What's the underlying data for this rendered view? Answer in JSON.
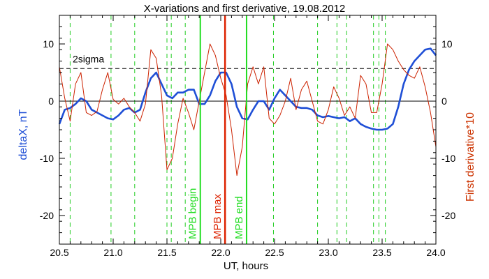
{
  "chart_data": {
    "type": "line",
    "title": "X-variations and first derivative, 19.08.2012",
    "xlabel": "UT, hours",
    "ylabel_left": "deltaX, nT",
    "ylabel_right": "First derivative*10",
    "xlim": [
      20.5,
      24.0
    ],
    "ylim": [
      -25,
      15
    ],
    "x_ticks": [
      20.5,
      21.0,
      21.5,
      22.0,
      22.5,
      23.0,
      23.5,
      24.0
    ],
    "x_tick_labels": [
      "20.5",
      "21.0",
      "21.5",
      "22.0",
      "22.5",
      "23.0",
      "23.5",
      "24.0"
    ],
    "y_ticks": [
      10,
      0,
      -10,
      -20
    ],
    "y_tick_labels": [
      "10",
      "0",
      "-10",
      "-20"
    ],
    "sigma_level": 5.7,
    "sigma_label": "2sigma",
    "green_dashed_x": [
      20.6,
      20.98,
      21.2,
      21.5,
      21.54,
      21.67,
      22.49,
      22.9,
      23.08,
      23.17,
      23.42,
      23.47,
      23.53
    ],
    "markers": [
      {
        "label": "MPB begin",
        "x": 21.81,
        "color": "#22dd22"
      },
      {
        "label": "MPB max",
        "x": 22.04,
        "color": "#dd2200"
      },
      {
        "label": "MPB end",
        "x": 22.24,
        "color": "#22dd22"
      }
    ],
    "series": [
      {
        "color": "#1f4fd6",
        "x": [
          20.5,
          20.55,
          20.6,
          20.65,
          20.7,
          20.75,
          20.8,
          20.85,
          20.9,
          20.95,
          21.0,
          21.05,
          21.1,
          21.15,
          21.2,
          21.25,
          21.3,
          21.35,
          21.4,
          21.45,
          21.5,
          21.55,
          21.6,
          21.65,
          21.7,
          21.75,
          21.8,
          21.85,
          21.9,
          21.95,
          22.0,
          22.05,
          22.1,
          22.15,
          22.2,
          22.25,
          22.3,
          22.35,
          22.4,
          22.45,
          22.5,
          22.55,
          22.6,
          22.65,
          22.7,
          22.75,
          22.8,
          22.85,
          22.9,
          22.95,
          23.0,
          23.05,
          23.1,
          23.15,
          23.2,
          23.25,
          23.3,
          23.35,
          23.4,
          23.45,
          23.5,
          23.55,
          23.6,
          23.65,
          23.7,
          23.75,
          23.8,
          23.85,
          23.9,
          23.95,
          24.0
        ],
        "values": [
          -4,
          -1.5,
          -1.2,
          -0.5,
          0.5,
          0,
          -1.5,
          -2,
          -2.5,
          -3,
          -3.2,
          -2.5,
          -1.5,
          -1.2,
          -2,
          -1.5,
          1.5,
          4,
          5,
          3,
          1,
          0.5,
          1.5,
          1.5,
          2,
          2,
          -0.5,
          -0.5,
          1,
          3.5,
          5,
          5,
          3,
          -1,
          -3,
          -3.2,
          -1.5,
          0,
          0,
          -1.5,
          0.5,
          2,
          1,
          0,
          -1,
          -1.2,
          -1.2,
          -1.5,
          -2.5,
          -2.8,
          -2.6,
          -2.8,
          -3,
          -2.8,
          -3.5,
          -3,
          -4,
          -4.5,
          -4.8,
          -5,
          -5,
          -4.8,
          -4,
          -1,
          3,
          5.5,
          7,
          8,
          9,
          9.2,
          8
        ]
      },
      {
        "color": "#cc2200",
        "x": [
          20.5,
          20.55,
          20.6,
          20.65,
          20.7,
          20.75,
          20.8,
          20.85,
          20.9,
          20.95,
          21.0,
          21.05,
          21.1,
          21.15,
          21.2,
          21.25,
          21.3,
          21.35,
          21.4,
          21.45,
          21.5,
          21.55,
          21.6,
          21.65,
          21.7,
          21.75,
          21.8,
          21.85,
          21.9,
          21.95,
          22.0,
          22.05,
          22.1,
          22.15,
          22.2,
          22.25,
          22.3,
          22.35,
          22.4,
          22.45,
          22.5,
          22.55,
          22.6,
          22.65,
          22.7,
          22.75,
          22.8,
          22.85,
          22.9,
          22.95,
          23.0,
          23.05,
          23.1,
          23.15,
          23.2,
          23.25,
          23.3,
          23.35,
          23.4,
          23.45,
          23.5,
          23.55,
          23.6,
          23.65,
          23.7,
          23.75,
          23.8,
          23.85,
          23.9,
          23.95,
          24.0
        ],
        "values": [
          6,
          0.5,
          -3.5,
          3,
          5,
          -2,
          -2.5,
          -1.8,
          2,
          5,
          0.3,
          -0.5,
          0.5,
          -1,
          -2,
          -3.5,
          -0.5,
          9,
          7.5,
          1,
          -12,
          -10,
          -4,
          0.5,
          -2,
          -5,
          0,
          5,
          10,
          8,
          4,
          1,
          -5,
          -13,
          -8,
          3,
          6,
          3,
          6,
          -3,
          -4,
          -2.5,
          0,
          4,
          -1.5,
          2,
          3.5,
          0,
          -3.5,
          -4,
          -1.5,
          2.5,
          0.5,
          -2.5,
          -1,
          -3,
          4.5,
          3,
          -2,
          -2,
          3,
          10,
          9,
          7,
          5.5,
          4.5,
          4,
          6,
          2.5,
          -2,
          -8
        ]
      }
    ]
  }
}
